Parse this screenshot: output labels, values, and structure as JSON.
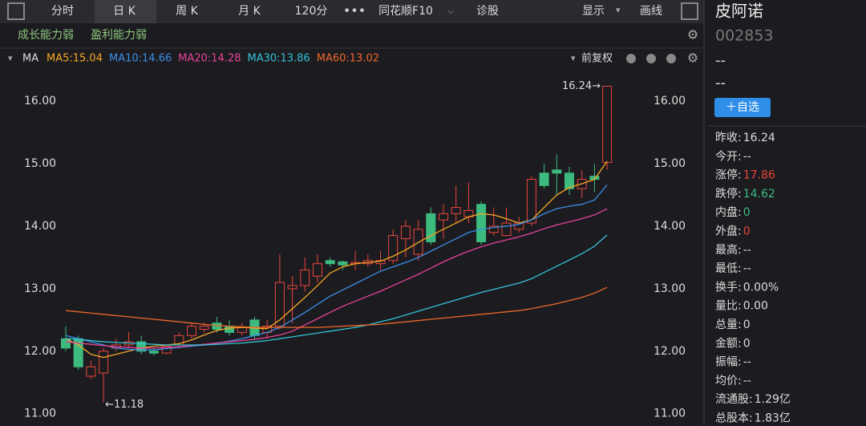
{
  "toolbar": {
    "tabs": [
      "分时",
      "日 K",
      "周 K",
      "月 K",
      "120分",
      "同花顺F10",
      "诊股"
    ],
    "right": [
      "显示",
      "画线"
    ]
  },
  "tags": [
    "成长能力弱",
    "盈利能力弱"
  ],
  "indicator": "MA",
  "adjust": "前复权",
  "chart_data": {
    "type": "candlestick",
    "open": [
      12.2,
      12.2,
      11.6,
      11.65,
      12.05,
      12.1,
      12.15,
      12.0,
      11.97,
      12.1,
      12.25,
      12.35,
      12.45,
      12.4,
      12.3,
      12.5,
      12.3,
      12.4,
      13.0,
      13.05,
      13.2,
      13.45,
      13.43,
      13.4,
      13.4,
      13.4,
      13.45,
      13.8,
      13.55,
      14.2,
      14.1,
      14.2,
      14.15,
      14.35,
      13.9,
      13.85,
      13.95,
      14.05,
      14.85,
      14.9,
      14.85,
      14.6,
      14.8,
      15.02
    ],
    "high": [
      12.4,
      12.25,
      11.85,
      12.05,
      12.2,
      12.3,
      12.25,
      12.05,
      12.1,
      12.3,
      12.45,
      12.45,
      12.55,
      12.5,
      12.45,
      12.55,
      12.5,
      13.55,
      13.2,
      13.5,
      13.55,
      13.5,
      13.45,
      13.6,
      13.55,
      13.6,
      13.95,
      14.1,
      14.1,
      14.3,
      14.35,
      14.65,
      14.7,
      14.4,
      14.3,
      14.3,
      14.15,
      14.8,
      15.0,
      15.15,
      14.95,
      14.9,
      15.0,
      16.24
    ],
    "low": [
      12.0,
      11.7,
      11.55,
      11.18,
      12.0,
      12.05,
      11.95,
      11.93,
      11.95,
      12.05,
      12.2,
      12.3,
      12.3,
      12.25,
      12.25,
      12.2,
      12.2,
      12.35,
      12.45,
      12.95,
      13.1,
      13.35,
      13.3,
      13.3,
      13.35,
      13.3,
      13.4,
      13.5,
      13.45,
      13.7,
      13.8,
      14.05,
      14.05,
      13.7,
      13.85,
      13.85,
      13.9,
      14.0,
      14.6,
      14.5,
      14.5,
      14.45,
      14.55,
      14.9
    ],
    "close": [
      12.05,
      11.75,
      11.75,
      12.0,
      12.1,
      12.15,
      12.0,
      11.97,
      12.08,
      12.25,
      12.4,
      12.4,
      12.35,
      12.3,
      12.38,
      12.25,
      12.4,
      13.1,
      13.05,
      13.3,
      13.4,
      13.4,
      13.38,
      13.42,
      13.45,
      13.45,
      13.85,
      14.0,
      13.95,
      13.75,
      14.2,
      14.3,
      14.25,
      13.75,
      14.0,
      14.05,
      14.05,
      14.75,
      14.65,
      14.85,
      14.6,
      14.75,
      14.75,
      16.24
    ],
    "up_color": "#e8453c",
    "down_color": "#3dbb7e",
    "series": [
      {
        "name": "MA5:15.04",
        "color": "#f5a623",
        "values": [
          12.2,
          12.1,
          11.95,
          11.9,
          11.95,
          12.0,
          12.05,
          12.08,
          12.1,
          12.12,
          12.18,
          12.26,
          12.33,
          12.37,
          12.38,
          12.37,
          12.36,
          12.5,
          12.68,
          12.86,
          13.05,
          13.25,
          13.35,
          13.4,
          13.42,
          13.44,
          13.52,
          13.62,
          13.74,
          13.85,
          13.95,
          14.05,
          14.15,
          14.2,
          14.18,
          14.12,
          14.05,
          14.1,
          14.3,
          14.5,
          14.62,
          14.68,
          14.75,
          15.04
        ]
      },
      {
        "name": "MA10:14.66",
        "color": "#3a8ee6",
        "values": [
          12.25,
          12.2,
          12.15,
          12.1,
          12.05,
          12.03,
          12.02,
          12.02,
          12.04,
          12.06,
          12.08,
          12.1,
          12.13,
          12.16,
          12.2,
          12.25,
          12.3,
          12.38,
          12.5,
          12.62,
          12.75,
          12.88,
          12.98,
          13.08,
          13.18,
          13.28,
          13.35,
          13.42,
          13.5,
          13.6,
          13.7,
          13.8,
          13.9,
          13.95,
          13.98,
          14.0,
          14.03,
          14.1,
          14.2,
          14.28,
          14.32,
          14.35,
          14.42,
          14.66
        ]
      },
      {
        "name": "MA20:14.28",
        "color": "#e8439a",
        "values": [
          12.15,
          12.13,
          12.11,
          12.09,
          12.07,
          12.06,
          12.05,
          12.05,
          12.06,
          12.07,
          12.09,
          12.11,
          12.13,
          12.15,
          12.17,
          12.19,
          12.22,
          12.26,
          12.32,
          12.42,
          12.52,
          12.62,
          12.72,
          12.8,
          12.88,
          12.96,
          13.05,
          13.14,
          13.23,
          13.33,
          13.43,
          13.52,
          13.6,
          13.67,
          13.73,
          13.78,
          13.83,
          13.89,
          13.96,
          14.02,
          14.07,
          14.12,
          14.18,
          14.28
        ]
      },
      {
        "name": "MA30:13.86",
        "color": "#33c2d6",
        "values": [
          12.2,
          12.19,
          12.17,
          12.15,
          12.14,
          12.13,
          12.12,
          12.11,
          12.1,
          12.1,
          12.1,
          12.1,
          12.11,
          12.12,
          12.13,
          12.15,
          12.17,
          12.2,
          12.23,
          12.26,
          12.29,
          12.32,
          12.35,
          12.38,
          12.42,
          12.47,
          12.52,
          12.58,
          12.64,
          12.7,
          12.76,
          12.82,
          12.88,
          12.94,
          12.99,
          13.04,
          13.09,
          13.16,
          13.26,
          13.36,
          13.46,
          13.56,
          13.68,
          13.86
        ]
      },
      {
        "name": "MA60:13.02",
        "color": "#f0672a",
        "values": [
          12.65,
          12.63,
          12.61,
          12.59,
          12.57,
          12.55,
          12.53,
          12.51,
          12.49,
          12.47,
          12.45,
          12.43,
          12.41,
          12.4,
          12.39,
          12.38,
          12.38,
          12.38,
          12.38,
          12.38,
          12.38,
          12.39,
          12.4,
          12.41,
          12.42,
          12.43,
          12.45,
          12.47,
          12.49,
          12.51,
          12.53,
          12.55,
          12.57,
          12.59,
          12.61,
          12.63,
          12.65,
          12.68,
          12.72,
          12.76,
          12.81,
          12.86,
          12.93,
          13.02
        ]
      }
    ],
    "ylim": [
      10.88,
      16.4
    ],
    "yticks": [
      {
        "value": 11,
        "label": "11.00"
      },
      {
        "value": 12,
        "label": "12.00"
      },
      {
        "value": 13,
        "label": "13.00"
      },
      {
        "value": 14,
        "label": "14.00"
      },
      {
        "value": 15,
        "label": "15.00"
      },
      {
        "value": 16,
        "label": "16.00"
      }
    ],
    "annotations": {
      "high": "16.24→",
      "low": "←11.18"
    }
  },
  "stock": {
    "name": "皮阿诺",
    "code": "002853",
    "price": "--",
    "change": "--",
    "button": "＋自选",
    "stats": [
      {
        "label": "昨收:",
        "value": "16.24"
      },
      {
        "label": "今开:",
        "value": "--"
      },
      {
        "label": "涨停:",
        "value": "17.86",
        "color": "#e8453c"
      },
      {
        "label": "跌停:",
        "value": "14.62",
        "color": "#3dbb7e"
      },
      {
        "label": "内盘:",
        "value": "0",
        "color": "#3dbb7e"
      },
      {
        "label": "外盘:",
        "value": "0",
        "color": "#e8453c"
      },
      {
        "label": "最高:",
        "value": "--"
      },
      {
        "label": "最低:",
        "value": "--"
      },
      {
        "label": "换手:",
        "value": "0.00%"
      },
      {
        "label": "量比:",
        "value": "0.00"
      },
      {
        "label": "总量:",
        "value": "0"
      },
      {
        "label": "金额:",
        "value": "0"
      },
      {
        "label": "振幅:",
        "value": "--"
      },
      {
        "label": "均价:",
        "value": "--"
      },
      {
        "label": "流通股:",
        "value": "1.29亿"
      },
      {
        "label": "总股本:",
        "value": "1.83亿"
      }
    ]
  }
}
